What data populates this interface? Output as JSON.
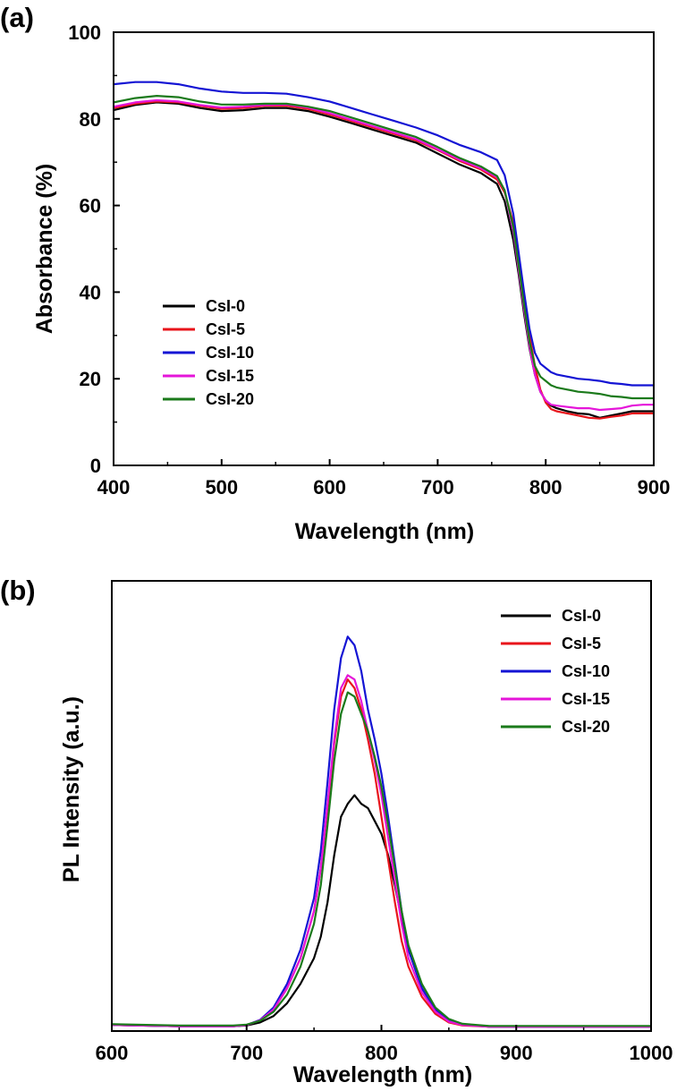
{
  "chart_data": [
    {
      "type": "line",
      "panel": "(a)",
      "xlabel": "Wavelength (nm)",
      "ylabel": "Absorbance (%)",
      "xlim": [
        400,
        900
      ],
      "ylim": [
        0,
        100
      ],
      "xticks": [
        "400",
        "500",
        "600",
        "700",
        "800",
        "900"
      ],
      "yticks": [
        "0",
        "20",
        "40",
        "60",
        "80",
        "100"
      ],
      "legend_position": "center-left",
      "series": [
        {
          "name": "CsI-0",
          "color": "#000000",
          "x": [
            400,
            420,
            440,
            460,
            480,
            500,
            520,
            540,
            560,
            580,
            600,
            620,
            640,
            660,
            680,
            700,
            720,
            740,
            755,
            762,
            770,
            775,
            780,
            785,
            790,
            795,
            800,
            805,
            810,
            820,
            830,
            840,
            850,
            860,
            870,
            880,
            890,
            900
          ],
          "y": [
            82.0,
            83.2,
            83.8,
            83.5,
            82.5,
            81.8,
            82.0,
            82.5,
            82.5,
            81.8,
            80.5,
            79.0,
            77.5,
            76.0,
            74.5,
            72.0,
            69.5,
            67.5,
            65.0,
            61.0,
            52.0,
            44.0,
            35.0,
            27.0,
            21.0,
            17.0,
            15.0,
            13.8,
            13.2,
            12.5,
            12.0,
            11.8,
            11.0,
            11.5,
            12.0,
            12.5,
            12.5,
            12.5
          ]
        },
        {
          "name": "CsI-5",
          "color": "#e8141b",
          "x": [
            400,
            420,
            440,
            460,
            480,
            500,
            520,
            540,
            560,
            580,
            600,
            620,
            640,
            660,
            680,
            700,
            720,
            740,
            755,
            762,
            770,
            775,
            780,
            785,
            790,
            795,
            800,
            805,
            810,
            820,
            830,
            840,
            850,
            860,
            870,
            880,
            890,
            900
          ],
          "y": [
            82.5,
            83.5,
            84.0,
            83.8,
            83.0,
            82.3,
            82.5,
            83.0,
            83.0,
            82.3,
            81.0,
            79.5,
            78.0,
            76.5,
            75.0,
            72.8,
            70.3,
            68.3,
            66.0,
            63.0,
            56.0,
            48.0,
            38.5,
            30.0,
            23.0,
            17.5,
            14.5,
            13.0,
            12.5,
            12.0,
            11.5,
            11.0,
            10.8,
            11.2,
            11.5,
            12.0,
            12.0,
            12.0
          ]
        },
        {
          "name": "CsI-10",
          "color": "#1414d4",
          "x": [
            400,
            420,
            440,
            460,
            480,
            500,
            520,
            540,
            560,
            580,
            600,
            620,
            640,
            660,
            680,
            700,
            720,
            740,
            755,
            762,
            770,
            775,
            780,
            785,
            790,
            795,
            800,
            805,
            810,
            820,
            830,
            840,
            850,
            860,
            870,
            880,
            890,
            900
          ],
          "y": [
            88.0,
            88.5,
            88.5,
            88.0,
            87.0,
            86.3,
            86.0,
            86.0,
            85.8,
            85.0,
            84.0,
            82.5,
            81.0,
            79.5,
            78.0,
            76.2,
            74.0,
            72.3,
            70.5,
            67.0,
            58.0,
            49.0,
            40.0,
            31.5,
            26.0,
            23.5,
            22.5,
            21.5,
            21.0,
            20.5,
            20.0,
            19.8,
            19.5,
            19.0,
            18.8,
            18.5,
            18.5,
            18.5
          ]
        },
        {
          "name": "CsI-15",
          "color": "#e515d9",
          "x": [
            400,
            420,
            440,
            460,
            480,
            500,
            520,
            540,
            560,
            580,
            600,
            620,
            640,
            660,
            680,
            700,
            720,
            740,
            755,
            762,
            770,
            775,
            780,
            785,
            790,
            795,
            800,
            805,
            810,
            820,
            830,
            840,
            850,
            860,
            870,
            880,
            890,
            900
          ],
          "y": [
            82.8,
            83.8,
            84.3,
            84.0,
            83.2,
            82.6,
            82.8,
            83.2,
            83.3,
            82.6,
            81.3,
            79.8,
            78.3,
            76.8,
            75.3,
            73.0,
            70.6,
            68.6,
            66.5,
            63.5,
            54.0,
            45.0,
            36.0,
            27.5,
            21.0,
            17.0,
            15.0,
            14.0,
            13.8,
            13.5,
            13.2,
            13.2,
            12.8,
            13.0,
            13.2,
            13.8,
            14.0,
            14.0
          ]
        },
        {
          "name": "CsI-20",
          "color": "#1b7a1b",
          "x": [
            400,
            420,
            440,
            460,
            480,
            500,
            520,
            540,
            560,
            580,
            600,
            620,
            640,
            660,
            680,
            700,
            720,
            740,
            755,
            762,
            770,
            775,
            780,
            785,
            790,
            795,
            800,
            805,
            810,
            820,
            830,
            840,
            850,
            860,
            870,
            880,
            890,
            900
          ],
          "y": [
            83.8,
            84.8,
            85.3,
            85.0,
            84.0,
            83.3,
            83.3,
            83.5,
            83.5,
            82.8,
            81.8,
            80.3,
            78.8,
            77.3,
            75.8,
            73.5,
            71.0,
            69.0,
            66.8,
            63.5,
            55.0,
            46.0,
            37.0,
            28.5,
            23.0,
            20.5,
            19.5,
            18.5,
            18.0,
            17.5,
            17.0,
            16.8,
            16.5,
            16.0,
            15.8,
            15.5,
            15.5,
            15.5
          ]
        }
      ]
    },
    {
      "type": "line",
      "panel": "(b)",
      "xlabel": "Wavelength (nm)",
      "ylabel": "PL Intensity (a.u.)",
      "xlim": [
        600,
        1000
      ],
      "ylim": [
        0,
        1.05
      ],
      "xticks": [
        "600",
        "700",
        "800",
        "900",
        "1000"
      ],
      "yticks": [],
      "legend_position": "top-right",
      "series": [
        {
          "name": "CsI-0",
          "color": "#000000",
          "x": [
            600,
            650,
            690,
            700,
            710,
            720,
            730,
            740,
            750,
            755,
            760,
            765,
            770,
            775,
            780,
            785,
            790,
            795,
            800,
            805,
            810,
            815,
            820,
            830,
            840,
            850,
            860,
            880,
            900,
            950,
            1000
          ],
          "y": [
            0.014,
            0.011,
            0.011,
            0.013,
            0.02,
            0.035,
            0.065,
            0.11,
            0.17,
            0.22,
            0.3,
            0.41,
            0.5,
            0.53,
            0.55,
            0.53,
            0.52,
            0.49,
            0.46,
            0.41,
            0.34,
            0.26,
            0.19,
            0.1,
            0.05,
            0.025,
            0.015,
            0.01,
            0.01,
            0.01,
            0.01
          ]
        },
        {
          "name": "CsI-5",
          "color": "#e8141b",
          "x": [
            600,
            650,
            690,
            700,
            710,
            720,
            730,
            740,
            750,
            755,
            760,
            765,
            770,
            775,
            780,
            785,
            790,
            795,
            800,
            805,
            810,
            815,
            820,
            830,
            840,
            850,
            860,
            880,
            900,
            950,
            1000
          ],
          "y": [
            0.014,
            0.011,
            0.011,
            0.014,
            0.025,
            0.05,
            0.1,
            0.17,
            0.28,
            0.38,
            0.52,
            0.67,
            0.78,
            0.82,
            0.8,
            0.75,
            0.68,
            0.6,
            0.5,
            0.4,
            0.3,
            0.21,
            0.15,
            0.08,
            0.04,
            0.02,
            0.013,
            0.01,
            0.01,
            0.01,
            0.01
          ]
        },
        {
          "name": "CsI-10",
          "color": "#1414d4",
          "x": [
            600,
            650,
            690,
            700,
            710,
            720,
            730,
            740,
            750,
            755,
            760,
            765,
            770,
            775,
            780,
            785,
            790,
            795,
            800,
            805,
            810,
            815,
            820,
            830,
            840,
            850,
            860,
            880,
            900,
            950,
            1000
          ],
          "y": [
            0.014,
            0.011,
            0.011,
            0.014,
            0.026,
            0.055,
            0.11,
            0.19,
            0.31,
            0.42,
            0.58,
            0.75,
            0.87,
            0.92,
            0.9,
            0.84,
            0.75,
            0.68,
            0.6,
            0.5,
            0.39,
            0.28,
            0.19,
            0.1,
            0.05,
            0.025,
            0.015,
            0.01,
            0.01,
            0.01,
            0.01
          ]
        },
        {
          "name": "CsI-15",
          "color": "#e515d9",
          "x": [
            600,
            650,
            690,
            700,
            710,
            720,
            730,
            740,
            750,
            755,
            760,
            765,
            770,
            775,
            780,
            785,
            790,
            795,
            800,
            805,
            810,
            815,
            820,
            830,
            840,
            850,
            860,
            880,
            900,
            950,
            1000
          ],
          "y": [
            0.014,
            0.011,
            0.011,
            0.014,
            0.025,
            0.05,
            0.1,
            0.17,
            0.28,
            0.38,
            0.53,
            0.68,
            0.8,
            0.83,
            0.82,
            0.77,
            0.7,
            0.63,
            0.55,
            0.45,
            0.35,
            0.25,
            0.17,
            0.09,
            0.045,
            0.022,
            0.014,
            0.01,
            0.01,
            0.01,
            0.01
          ]
        },
        {
          "name": "CsI-20",
          "color": "#1b7a1b",
          "x": [
            600,
            650,
            690,
            700,
            710,
            720,
            730,
            740,
            750,
            755,
            760,
            765,
            770,
            775,
            780,
            785,
            790,
            795,
            800,
            805,
            810,
            815,
            820,
            830,
            840,
            850,
            860,
            880,
            900,
            950,
            1000
          ],
          "y": [
            0.016,
            0.013,
            0.013,
            0.015,
            0.024,
            0.045,
            0.085,
            0.15,
            0.25,
            0.34,
            0.48,
            0.63,
            0.74,
            0.79,
            0.78,
            0.74,
            0.7,
            0.64,
            0.57,
            0.48,
            0.38,
            0.28,
            0.2,
            0.11,
            0.055,
            0.028,
            0.017,
            0.012,
            0.012,
            0.012,
            0.012
          ]
        }
      ]
    }
  ],
  "panels": {
    "a": {
      "label": "(a)"
    },
    "b": {
      "label": "(b)"
    }
  }
}
